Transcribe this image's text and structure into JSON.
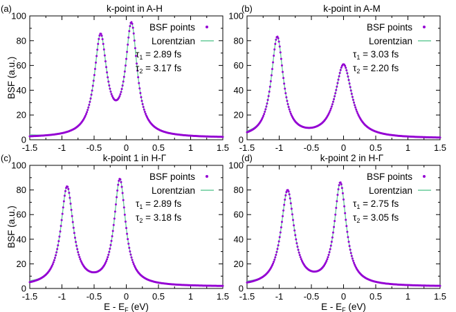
{
  "chart_data": [
    {
      "type": "line",
      "panel_label": "(a)",
      "title": "k-point in A-H",
      "xlabel": "",
      "ylabel": "BSF (a.u.)",
      "xlim": [
        -1.5,
        1.5
      ],
      "ylim": [
        0,
        100
      ],
      "xticks": [
        "-1.5",
        "-1",
        "-0.5",
        "0",
        "0.5",
        "1",
        "1.5"
      ],
      "yticks": [
        "0",
        "20",
        "40",
        "60",
        "80",
        "100"
      ],
      "legend_position": "top-right",
      "series": [
        {
          "name": "BSF points",
          "style": "points",
          "color": "#9400d3"
        },
        {
          "name": "Lorentzian",
          "style": "line",
          "color": "#66cc99"
        }
      ],
      "annotations": [
        {
          "symbol": "τ",
          "sub": "1",
          "text": " = 2.89 fs"
        },
        {
          "symbol": "τ",
          "sub": "2",
          "text": " = 3.17 fs"
        }
      ],
      "peaks": [
        {
          "x": -0.4,
          "height": 80,
          "width": 0.117
        },
        {
          "x": 0.08,
          "height": 89,
          "width": 0.108
        }
      ],
      "baseline": 1.5
    },
    {
      "type": "line",
      "panel_label": "(b)",
      "title": "k-point in A-M",
      "xlabel": "",
      "ylabel": "",
      "xlim": [
        -1.5,
        1.5
      ],
      "ylim": [
        0,
        100
      ],
      "xticks": [
        "-1.5",
        "-1",
        "-0.5",
        "0",
        "0.5",
        "1",
        "1.5"
      ],
      "yticks": [
        "0",
        "20",
        "40",
        "60",
        "80",
        "100"
      ],
      "legend_position": "top-right",
      "series": [
        {
          "name": "BSF points",
          "style": "points",
          "color": "#9400d3"
        },
        {
          "name": "Lorentzian",
          "style": "line",
          "color": "#66cc99"
        }
      ],
      "annotations": [
        {
          "symbol": "τ",
          "sub": "1",
          "text": " = 3.03 fs"
        },
        {
          "symbol": "τ",
          "sub": "2",
          "text": " = 2.20 fs"
        }
      ],
      "peaks": [
        {
          "x": -1.03,
          "height": 81,
          "width": 0.113
        },
        {
          "x": 0.0,
          "height": 59,
          "width": 0.155
        }
      ],
      "baseline": 1.0
    },
    {
      "type": "line",
      "panel_label": "(c)",
      "title": "k-point 1 in H-Γ",
      "xlabel": "E - E_F (eV)",
      "ylabel": "BSF (a.u.)",
      "xlim": [
        -1.5,
        1.5
      ],
      "ylim": [
        0,
        100
      ],
      "xticks": [
        "-1.5",
        "-1",
        "-0.5",
        "0",
        "0.5",
        "1",
        "1.5"
      ],
      "yticks": [
        "0",
        "20",
        "40",
        "60",
        "80",
        "100"
      ],
      "legend_position": "top-right",
      "series": [
        {
          "name": "BSF points",
          "style": "points",
          "color": "#9400d3"
        },
        {
          "name": "Lorentzian",
          "style": "line",
          "color": "#66cc99"
        }
      ],
      "annotations": [
        {
          "symbol": "τ",
          "sub": "1",
          "text": " = 2.89 fs"
        },
        {
          "symbol": "τ",
          "sub": "2",
          "text": " = 3.18 fs"
        }
      ],
      "peaks": [
        {
          "x": -0.92,
          "height": 80,
          "width": 0.117
        },
        {
          "x": -0.1,
          "height": 86,
          "width": 0.108
        }
      ],
      "baseline": 1.5
    },
    {
      "type": "line",
      "panel_label": "(d)",
      "title": "k-point 2 in H-Γ",
      "xlabel": "E - E_F (eV)",
      "ylabel": "",
      "xlim": [
        -1.5,
        1.5
      ],
      "ylim": [
        0,
        100
      ],
      "xticks": [
        "-1.5",
        "-1",
        "-0.5",
        "0",
        "0.5",
        "1",
        "1.5"
      ],
      "yticks": [
        "0",
        "20",
        "40",
        "60",
        "80",
        "100"
      ],
      "legend_position": "top-right",
      "series": [
        {
          "name": "BSF points",
          "style": "points",
          "color": "#9400d3"
        },
        {
          "name": "Lorentzian",
          "style": "line",
          "color": "#66cc99"
        }
      ],
      "annotations": [
        {
          "symbol": "τ",
          "sub": "1",
          "text": " = 2.75 fs"
        },
        {
          "symbol": "τ",
          "sub": "2",
          "text": " = 3.05 fs"
        }
      ],
      "peaks": [
        {
          "x": -0.87,
          "height": 77,
          "width": 0.124
        },
        {
          "x": -0.05,
          "height": 83,
          "width": 0.112
        }
      ],
      "baseline": 1.5
    }
  ]
}
